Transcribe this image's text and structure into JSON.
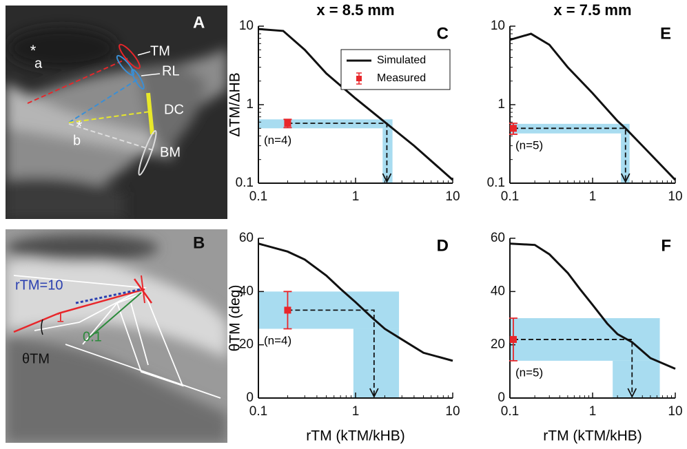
{
  "image_panels": [
    {
      "label": "A",
      "texts": [
        "TM",
        "RL",
        "DC",
        "BM",
        "a",
        "b"
      ]
    },
    {
      "label": "B",
      "texts": [
        "rTM=10",
        "1",
        "0.1",
        "θTM"
      ]
    }
  ],
  "chart_data": [
    {
      "type": "line",
      "label": "C",
      "title": "x = 8.5 mm",
      "ylabel": "ΔTM/ΔHB",
      "xlog": true,
      "ylog": true,
      "xlim": [
        0.1,
        10
      ],
      "ylim": [
        0.1,
        10
      ],
      "xticks": [
        0.1,
        1,
        10
      ],
      "yticks": [
        0.1,
        1,
        10
      ],
      "legend": "upper right",
      "series": [
        {
          "name": "Simulated",
          "color": "#111111",
          "x": [
            0.1,
            0.18,
            0.3,
            0.5,
            1,
            2,
            4,
            10
          ],
          "values": [
            9.2,
            8.7,
            5.0,
            2.5,
            1.2,
            0.6,
            0.3,
            0.11
          ]
        },
        {
          "name": "Measured",
          "type": "errorbar",
          "color": "#e8262a",
          "x": [
            0.2
          ],
          "values": [
            0.58
          ],
          "errors": [
            0.07
          ]
        }
      ],
      "band": {
        "x": [
          1.9,
          2.4
        ],
        "y": [
          0.5,
          0.65
        ]
      },
      "band_color": "#a8dcf0",
      "estimate": 2.1,
      "n_label": "(n=4)"
    },
    {
      "type": "line",
      "label": "D",
      "ylabel": "θTM (deg)",
      "xlabel": "rTM (kTM/kHB)",
      "xlog": true,
      "ylog": false,
      "xlim": [
        0.1,
        10
      ],
      "ylim": [
        0,
        60
      ],
      "xticks": [
        0.1,
        1,
        10
      ],
      "yticks": [
        0,
        20,
        40,
        60
      ],
      "series": [
        {
          "color": "#111111",
          "x": [
            0.1,
            0.2,
            0.3,
            0.5,
            0.7,
            1,
            1.5,
            2,
            3,
            5,
            10
          ],
          "values": [
            58,
            55,
            52,
            46,
            41,
            36,
            30,
            26,
            22,
            17,
            14
          ]
        },
        {
          "type": "errorbar",
          "color": "#e8262a",
          "x": [
            0.2
          ],
          "values": [
            33
          ],
          "errors": [
            7
          ]
        }
      ],
      "band": {
        "x": [
          0.95,
          2.8
        ],
        "y": [
          26,
          40
        ]
      },
      "band_color": "#a8dcf0",
      "estimate": 1.55,
      "n_label": "(n=4)"
    },
    {
      "type": "line",
      "label": "E",
      "title": "x = 7.5 mm",
      "xlog": true,
      "ylog": true,
      "xlim": [
        0.1,
        10
      ],
      "ylim": [
        0.1,
        10
      ],
      "xticks": [
        0.1,
        1,
        10
      ],
      "yticks": [
        0.1,
        1,
        10
      ],
      "series": [
        {
          "color": "#111111",
          "x": [
            0.1,
            0.18,
            0.3,
            0.5,
            1,
            2,
            2.5,
            4,
            10
          ],
          "values": [
            6.7,
            8,
            5.8,
            3,
            1.4,
            0.62,
            0.5,
            0.3,
            0.11
          ]
        },
        {
          "type": "errorbar",
          "color": "#e8262a",
          "x": [
            0.11
          ],
          "values": [
            0.5
          ],
          "errors": [
            0.08
          ]
        }
      ],
      "band": {
        "x": [
          2.2,
          2.8
        ],
        "y": [
          0.43,
          0.57
        ]
      },
      "band_color": "#a8dcf0",
      "estimate": 2.5,
      "n_label": "(n=5)"
    },
    {
      "type": "line",
      "label": "F",
      "xlabel": "rTM (kTM/kHB)",
      "xlog": true,
      "ylog": false,
      "xlim": [
        0.1,
        10
      ],
      "ylim": [
        0,
        60
      ],
      "xticks": [
        0.1,
        1,
        10
      ],
      "yticks": [
        0,
        20,
        40,
        60
      ],
      "series": [
        {
          "color": "#111111",
          "x": [
            0.1,
            0.2,
            0.3,
            0.5,
            0.7,
            1,
            1.5,
            2,
            3,
            5,
            10
          ],
          "values": [
            58,
            57.5,
            54,
            47,
            41,
            35,
            28,
            24,
            21,
            15,
            11
          ]
        },
        {
          "type": "errorbar",
          "color": "#e8262a",
          "x": [
            0.11
          ],
          "values": [
            22
          ],
          "errors": [
            8
          ]
        }
      ],
      "band": {
        "x": [
          1.75,
          6.5
        ],
        "y": [
          14,
          30
        ]
      },
      "band_color": "#a8dcf0",
      "estimate": 3.0,
      "n_label": "(n=5)"
    }
  ]
}
